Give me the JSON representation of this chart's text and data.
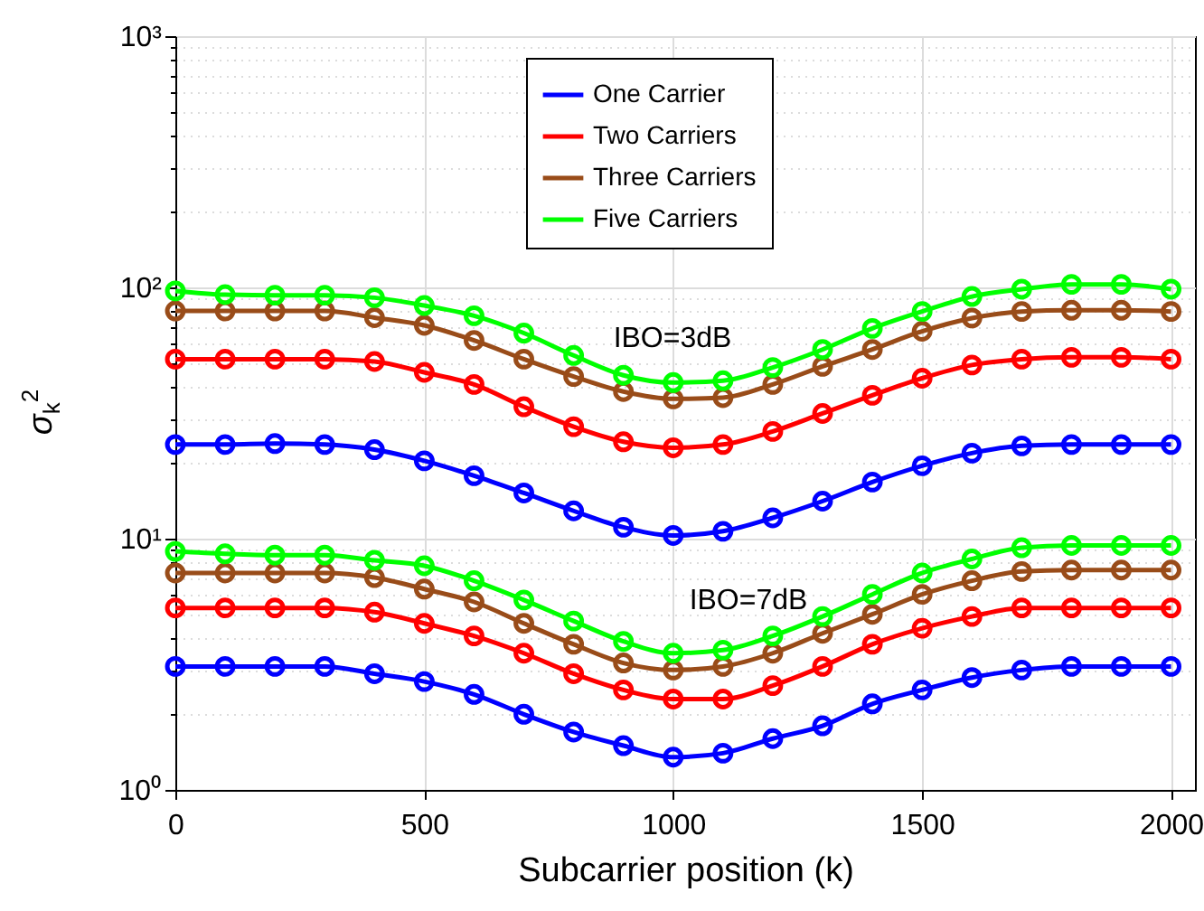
{
  "chart_data": {
    "type": "line",
    "xlabel": "Subcarrier position (k)",
    "ylabel": "σ$_{k}$$^{2}$",
    "x": [
      0,
      100,
      200,
      300,
      400,
      500,
      600,
      700,
      800,
      900,
      1000,
      1100,
      1200,
      1300,
      1400,
      1500,
      1600,
      1700,
      1800,
      1900,
      2000
    ],
    "series": [
      {
        "name": "One Carrier",
        "color": "#0000ff",
        "values": [
          23.7,
          23.7,
          23.9,
          23.7,
          22.6,
          20.4,
          17.8,
          15.2,
          12.9,
          11.1,
          10.3,
          10.7,
          12.1,
          14.1,
          16.8,
          19.5,
          21.9,
          23.4,
          23.7,
          23.7,
          23.7
        ]
      },
      {
        "name": "Two Carriers",
        "color": "#ff0000",
        "values": [
          51.8,
          51.8,
          51.8,
          51.8,
          50.7,
          45.9,
          41.1,
          33.5,
          27.9,
          24.3,
          23,
          23.7,
          26.7,
          31.5,
          37.2,
          43.5,
          49.1,
          51.8,
          52.7,
          52.7,
          51.8
        ]
      },
      {
        "name": "Three Carriers",
        "color": "#994c19",
        "values": [
          80.6,
          80.6,
          80.6,
          80.6,
          75.8,
          70.6,
          61.5,
          51.8,
          44.2,
          38.5,
          36,
          36.4,
          41.1,
          48.5,
          56.6,
          66.9,
          75.5,
          80.2,
          81.1,
          81.1,
          80.2
        ]
      },
      {
        "name": "Five Carriers",
        "color": "#00ff00",
        "values": [
          96.8,
          93.6,
          93.1,
          93.1,
          91,
          84.7,
          77.1,
          65.8,
          53.6,
          44.7,
          41.8,
          42.5,
          48,
          56.6,
          68.7,
          80.2,
          92,
          98.4,
          102.8,
          102.8,
          98.4
        ]
      },
      {
        "color": "#0000ff",
        "values": [
          3.1,
          3.1,
          3.1,
          3.1,
          2.9,
          2.7,
          2.4,
          2,
          1.7,
          1.5,
          1.35,
          1.4,
          1.6,
          1.8,
          2.2,
          2.5,
          2.8,
          3,
          3.1,
          3.1,
          3.1
        ]
      },
      {
        "color": "#ff0000",
        "values": [
          5.3,
          5.3,
          5.3,
          5.3,
          5.1,
          4.6,
          4.1,
          3.5,
          2.9,
          2.5,
          2.3,
          2.3,
          2.6,
          3.1,
          3.8,
          4.4,
          4.9,
          5.3,
          5.3,
          5.3,
          5.3
        ]
      },
      {
        "color": "#994c19",
        "values": [
          7.3,
          7.3,
          7.3,
          7.3,
          7,
          6.3,
          5.6,
          4.6,
          3.8,
          3.2,
          3,
          3.1,
          3.5,
          4.2,
          5,
          6,
          6.8,
          7.4,
          7.5,
          7.5,
          7.5
        ]
      },
      {
        "color": "#00ff00",
        "values": [
          8.9,
          8.7,
          8.6,
          8.6,
          8.2,
          7.8,
          6.8,
          5.7,
          4.7,
          3.9,
          3.5,
          3.6,
          4.1,
          4.9,
          6,
          7.3,
          8.3,
          9.2,
          9.4,
          9.4,
          9.4
        ]
      }
    ],
    "annotations": [
      "IBO=3dB",
      "IBO=7dB"
    ],
    "log": "y",
    "xlim": [
      0,
      2048
    ],
    "xticks": [
      0,
      500,
      1000,
      1500,
      2000
    ],
    "ylim": [
      1,
      1000
    ],
    "yticks": [
      {
        "value": 1,
        "label": "10⁰"
      },
      {
        "value": 2,
        "label": null
      },
      {
        "value": 3,
        "label": null
      },
      {
        "value": 4,
        "label": null
      },
      {
        "value": 5,
        "label": null
      },
      {
        "value": 6,
        "label": null
      },
      {
        "value": 7,
        "label": null
      },
      {
        "value": 8,
        "label": null
      },
      {
        "value": 9,
        "label": null
      },
      {
        "value": 10,
        "label": "10¹"
      },
      {
        "value": 20,
        "label": null
      },
      {
        "value": 30,
        "label": null
      },
      {
        "value": 40,
        "label": null
      },
      {
        "value": 50,
        "label": null
      },
      {
        "value": 60,
        "label": null
      },
      {
        "value": 70,
        "label": null
      },
      {
        "value": 80,
        "label": null
      },
      {
        "value": 90,
        "label": null
      },
      {
        "value": 100,
        "label": "10²"
      },
      {
        "value": 200,
        "label": null
      },
      {
        "value": 300,
        "label": null
      },
      {
        "value": 400,
        "label": null
      },
      {
        "value": 500,
        "label": null
      },
      {
        "value": 600,
        "label": null
      },
      {
        "value": 700,
        "label": null
      },
      {
        "value": 800,
        "label": null
      },
      {
        "value": 900,
        "label": null
      },
      {
        "value": 1000,
        "label": "10³"
      }
    ],
    "grid": true,
    "legend": "top",
    "marker": "circle",
    "line_style": "solid"
  }
}
